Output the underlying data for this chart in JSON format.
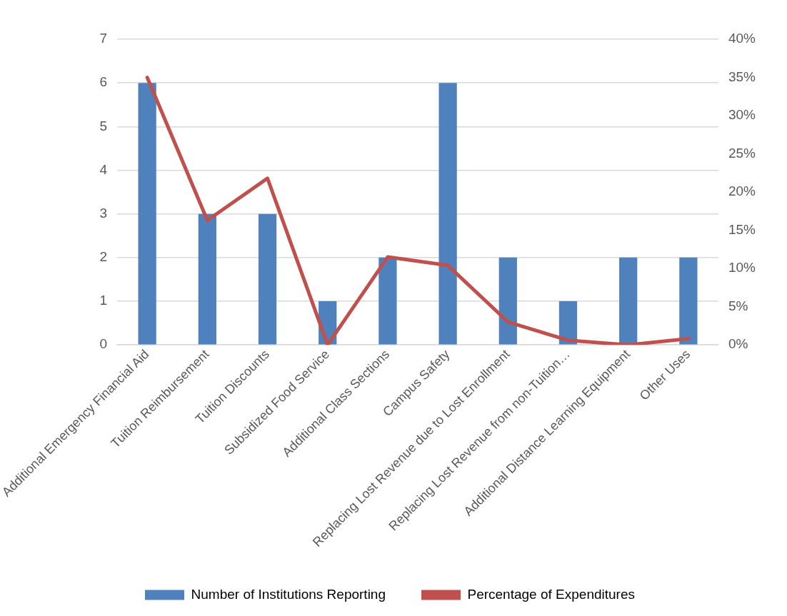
{
  "chart_data": {
    "type": "bar",
    "categories": [
      "Additional Emergency Financial Aid",
      "Tuition Reimbursement",
      "Tuition Discounts",
      "Subsidized Food Service",
      "Additional Class Sections",
      "Campus Safety",
      "Replacing Lost Revenue due to Lost Enrollment",
      "Replacing Lost Revenue from non-Tuition…",
      "Additional Distance Learning Equipment",
      "Other Uses"
    ],
    "series": [
      {
        "name": "Number of Institutions Reporting",
        "color": "#4f81bd",
        "values": [
          6,
          3,
          3,
          1,
          2,
          6,
          2,
          1,
          2,
          2
        ]
      },
      {
        "name": "Percentage of Expenditures",
        "type": "line",
        "axis": "y2",
        "color": "#c0504d",
        "values": [
          35,
          16.3,
          21.8,
          0,
          11.5,
          10.4,
          3,
          0.6,
          0,
          0.8
        ]
      }
    ],
    "ylim": [
      0,
      7
    ],
    "yticks": [
      0,
      1,
      2,
      3,
      4,
      5,
      6,
      7
    ],
    "y2lim": [
      0,
      40
    ],
    "y2ticks": [
      {
        "value": 0,
        "label": "0%"
      },
      {
        "value": 5,
        "label": "5%"
      },
      {
        "value": 10,
        "label": "10%"
      },
      {
        "value": 15,
        "label": "15%"
      },
      {
        "value": 20,
        "label": "20%"
      },
      {
        "value": 25,
        "label": "25%"
      },
      {
        "value": 30,
        "label": "30%"
      },
      {
        "value": 35,
        "label": "35%"
      },
      {
        "value": 40,
        "label": "40%"
      }
    ],
    "grid": "y",
    "legend": "bottom",
    "marker": "none",
    "line_style": "solid"
  }
}
